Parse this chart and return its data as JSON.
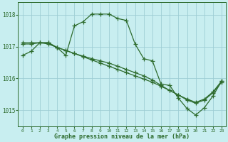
{
  "title": "Graphe pression niveau de la mer (hPa)",
  "bg_color": "#c8eef0",
  "grid_color": "#9ecdd4",
  "line_color": "#2d6b2d",
  "ylim": [
    1014.5,
    1018.4
  ],
  "xlim": [
    -0.5,
    23.5
  ],
  "yticks": [
    1015,
    1016,
    1017,
    1018
  ],
  "xticks": [
    0,
    1,
    2,
    3,
    4,
    5,
    6,
    7,
    8,
    9,
    10,
    11,
    12,
    13,
    14,
    15,
    16,
    17,
    18,
    19,
    20,
    21,
    22,
    23
  ],
  "line1_x": [
    0,
    1,
    2,
    3,
    4,
    5,
    6,
    7,
    8,
    9,
    10,
    11,
    12,
    13,
    14,
    15,
    16,
    17,
    18,
    19,
    20,
    21,
    22,
    23
  ],
  "line1_y": [
    1016.72,
    1016.85,
    1017.12,
    1017.12,
    1016.97,
    1016.72,
    1017.65,
    1017.78,
    1018.02,
    1018.02,
    1018.02,
    1017.88,
    1017.82,
    1017.08,
    1016.62,
    1016.55,
    1015.82,
    1015.78,
    1015.38,
    1015.05,
    1014.85,
    1015.08,
    1015.45,
    1015.92
  ],
  "line2_x": [
    0,
    1,
    2,
    3,
    4,
    5,
    6,
    7,
    8,
    9,
    10,
    11,
    12,
    13,
    14,
    15,
    16,
    17,
    18,
    19,
    20,
    21,
    22,
    23
  ],
  "line2_y": [
    1017.12,
    1017.12,
    1017.12,
    1017.12,
    1016.97,
    1016.88,
    1016.78,
    1016.68,
    1016.58,
    1016.48,
    1016.38,
    1016.28,
    1016.18,
    1016.08,
    1015.98,
    1015.88,
    1015.75,
    1015.62,
    1015.48,
    1015.35,
    1015.25,
    1015.35,
    1015.58,
    1015.92
  ],
  "line3_x": [
    0,
    1,
    2,
    3,
    4,
    5,
    6,
    7,
    8,
    9,
    10,
    11,
    12,
    13,
    14,
    15,
    16,
    17,
    18,
    19,
    20,
    21,
    22,
    23
  ],
  "line3_y": [
    1017.08,
    1017.08,
    1017.12,
    1017.08,
    1016.97,
    1016.88,
    1016.78,
    1016.7,
    1016.62,
    1016.55,
    1016.48,
    1016.38,
    1016.28,
    1016.18,
    1016.08,
    1015.95,
    1015.78,
    1015.62,
    1015.48,
    1015.32,
    1015.22,
    1015.32,
    1015.55,
    1015.88
  ]
}
